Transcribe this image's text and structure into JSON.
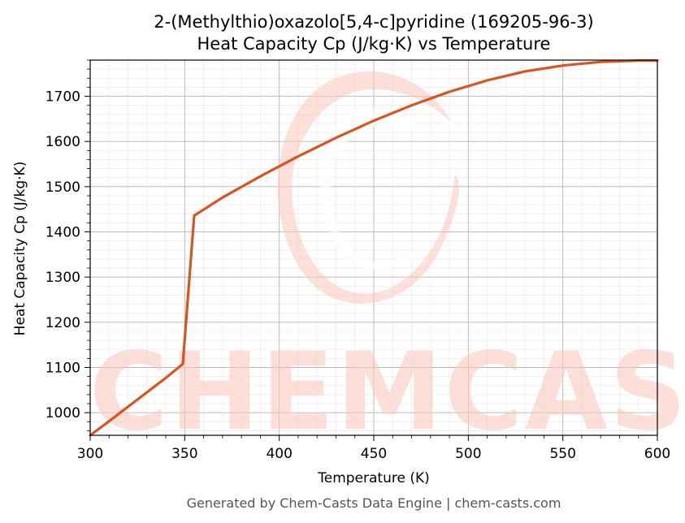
{
  "chart_data": {
    "type": "line",
    "title_line1": "2-(Methylthio)oxazolo[5,4-c]pyridine (169205-96-3)",
    "title_line2": "Heat Capacity Cp (J/kg·K) vs Temperature",
    "xlabel": "Temperature (K)",
    "ylabel": "Heat Capacity Cp (J/kg·K)",
    "xlim": [
      300,
      600
    ],
    "ylim": [
      950,
      1780
    ],
    "x_ticks": [
      300,
      350,
      400,
      450,
      500,
      550,
      600
    ],
    "y_ticks": [
      1000,
      1100,
      1200,
      1300,
      1400,
      1500,
      1600,
      1700
    ],
    "grid": true,
    "line_color": "#d9541e",
    "series": [
      {
        "x": [
          300,
          310,
          320,
          330,
          340,
          349,
          355,
          370,
          390,
          410,
          430,
          450,
          470,
          490,
          510,
          530,
          550,
          570,
          590,
          600
        ],
        "values": [
          950,
          981,
          1013,
          1045,
          1077,
          1108,
          1436,
          1476,
          1523,
          1567,
          1608,
          1646,
          1680,
          1710,
          1735,
          1755,
          1768,
          1776,
          1779,
          1779
        ]
      }
    ]
  },
  "watermark": {
    "text": "CHEMCASTS",
    "color": "#f9c6ba"
  },
  "footer": "Generated by Chem-Casts Data Engine | chem-casts.com"
}
